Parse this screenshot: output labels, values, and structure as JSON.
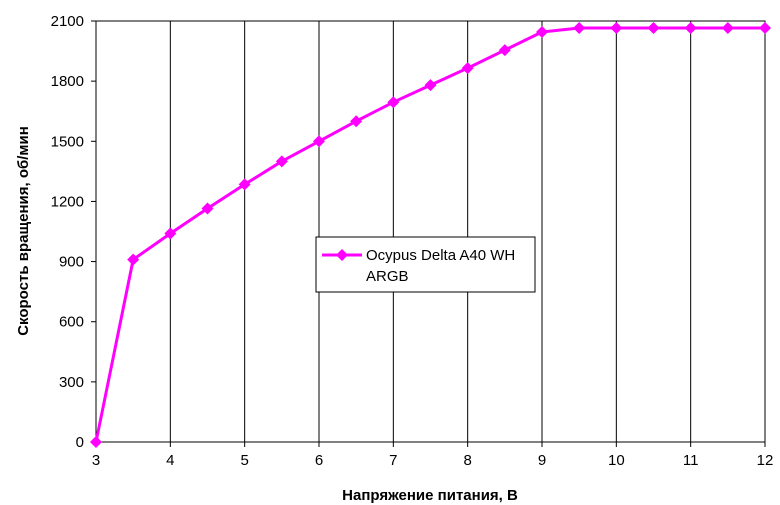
{
  "chart_data": {
    "type": "line",
    "title": "",
    "xlabel": "Напряжение питания, В",
    "ylabel": "Скорость вращения, об/мин",
    "xlim": [
      3,
      12
    ],
    "ylim": [
      0,
      2100
    ],
    "xticks": [
      3,
      4,
      5,
      6,
      7,
      8,
      9,
      10,
      11,
      12
    ],
    "yticks": [
      0,
      300,
      600,
      900,
      1200,
      1500,
      1800,
      2100
    ],
    "grid": "vertical",
    "legend_position": "center",
    "series": [
      {
        "name": "Ocypus Delta A40 WH ARGB",
        "legend_lines": [
          "Ocypus Delta A40 WH",
          "ARGB"
        ],
        "color": "#ff00ff",
        "marker": "diamond",
        "x": [
          3,
          3.5,
          4,
          4.5,
          5,
          5.5,
          6,
          6.5,
          7,
          7.5,
          8,
          8.5,
          9,
          9.5,
          10,
          10.5,
          11,
          11.5,
          12
        ],
        "y": [
          0,
          910,
          1040,
          1165,
          1285,
          1400,
          1500,
          1600,
          1695,
          1780,
          1865,
          1955,
          2045,
          2065,
          2065,
          2065,
          2065,
          2065,
          2065
        ]
      }
    ]
  }
}
